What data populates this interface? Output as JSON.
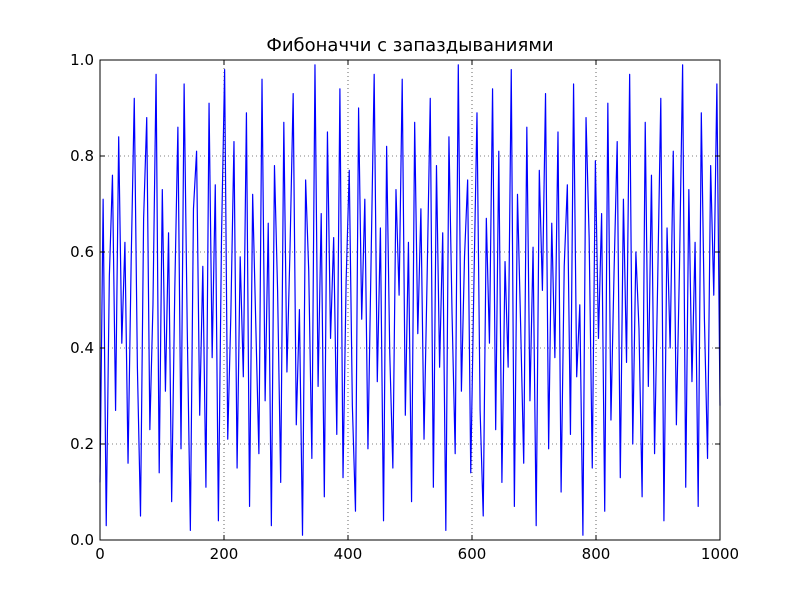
{
  "chart_data": {
    "type": "line",
    "title": "Фибоначчи с запаздываниями",
    "xlabel": "",
    "ylabel": "",
    "xlim": [
      0,
      1000
    ],
    "ylim": [
      0.0,
      1.0
    ],
    "grid": true,
    "x_ticks": [
      0,
      200,
      400,
      600,
      800,
      1000
    ],
    "x_tick_labels": [
      "0",
      "200",
      "400",
      "600",
      "800",
      "1000"
    ],
    "y_ticks": [
      0.0,
      0.2,
      0.4,
      0.6,
      0.8,
      1.0
    ],
    "y_tick_labels": [
      "0.0",
      "0.2",
      "0.4",
      "0.6",
      "0.8",
      "1.0"
    ],
    "series": [
      {
        "color": "#0000ff",
        "x_start": 0,
        "x_end": 1000,
        "values": [
          0.12,
          0.71,
          0.03,
          0.55,
          0.76,
          0.27,
          0.84,
          0.41,
          0.62,
          0.16,
          0.58,
          0.92,
          0.36,
          0.05,
          0.67,
          0.88,
          0.23,
          0.49,
          0.97,
          0.14,
          0.73,
          0.31,
          0.64,
          0.08,
          0.52,
          0.86,
          0.19,
          0.95,
          0.44,
          0.02,
          0.69,
          0.81,
          0.26,
          0.57,
          0.11,
          0.91,
          0.38,
          0.74,
          0.04,
          0.63,
          0.98,
          0.21,
          0.47,
          0.83,
          0.15,
          0.59,
          0.34,
          0.89,
          0.07,
          0.72,
          0.45,
          0.18,
          0.96,
          0.29,
          0.66,
          0.03,
          0.78,
          0.52,
          0.12,
          0.87,
          0.35,
          0.61,
          0.93,
          0.24,
          0.48,
          0.01,
          0.75,
          0.56,
          0.17,
          0.99,
          0.32,
          0.68,
          0.09,
          0.85,
          0.42,
          0.63,
          0.22,
          0.94,
          0.13,
          0.54,
          0.77,
          0.28,
          0.06,
          0.9,
          0.46,
          0.71,
          0.19,
          0.58,
          0.97,
          0.33,
          0.65,
          0.04,
          0.82,
          0.39,
          0.15,
          0.73,
          0.51,
          0.96,
          0.26,
          0.62,
          0.08,
          0.87,
          0.43,
          0.69,
          0.21,
          0.55,
          0.92,
          0.11,
          0.78,
          0.36,
          0.64,
          0.02,
          0.84,
          0.47,
          0.18,
          0.99,
          0.31,
          0.59,
          0.75,
          0.14,
          0.53,
          0.89,
          0.27,
          0.05,
          0.67,
          0.41,
          0.94,
          0.23,
          0.81,
          0.12,
          0.58,
          0.36,
          0.98,
          0.07,
          0.72,
          0.45,
          0.16,
          0.86,
          0.29,
          0.61,
          0.03,
          0.77,
          0.52,
          0.93,
          0.19,
          0.66,
          0.38,
          0.85,
          0.1,
          0.57,
          0.74,
          0.22,
          0.95,
          0.34,
          0.49,
          0.01,
          0.88,
          0.63,
          0.15,
          0.79,
          0.42,
          0.68,
          0.06,
          0.91,
          0.25,
          0.56,
          0.83,
          0.13,
          0.71,
          0.37,
          0.97,
          0.2,
          0.6,
          0.44,
          0.09,
          0.87,
          0.32,
          0.76,
          0.18,
          0.54,
          0.92,
          0.04,
          0.65,
          0.4,
          0.81,
          0.24,
          0.57,
          0.99,
          0.11,
          0.73,
          0.33,
          0.62,
          0.07,
          0.89,
          0.46,
          0.17,
          0.78,
          0.51,
          0.95,
          0.28
        ]
      }
    ]
  }
}
